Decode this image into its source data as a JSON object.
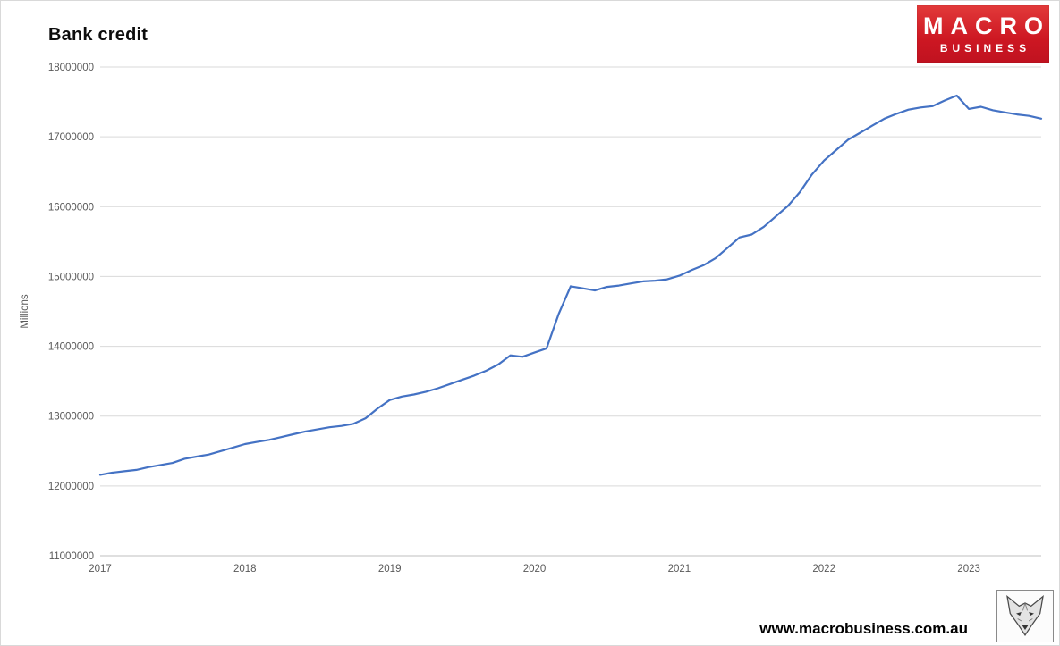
{
  "branding": {
    "logo_text_top": "MACRO",
    "logo_text_bottom": "BUSINESS",
    "logo_color": "#cd1722",
    "website": "www.macrobusiness.com.au"
  },
  "chart_data": {
    "type": "line",
    "title": "Bank credit",
    "xlabel": "",
    "ylabel": "Millions",
    "legend": "none",
    "grid": "horizontal",
    "series_name": "Bank credit",
    "series_color": "#4472c4",
    "ylim": [
      11000000,
      18000000
    ],
    "y_tick_step": 1000000,
    "x_tick_labels": [
      "2017",
      "2018",
      "2019",
      "2020",
      "2021",
      "2022",
      "2023"
    ],
    "months": [
      "2017-01",
      "2017-02",
      "2017-03",
      "2017-04",
      "2017-05",
      "2017-06",
      "2017-07",
      "2017-08",
      "2017-09",
      "2017-10",
      "2017-11",
      "2017-12",
      "2018-01",
      "2018-02",
      "2018-03",
      "2018-04",
      "2018-05",
      "2018-06",
      "2018-07",
      "2018-08",
      "2018-09",
      "2018-10",
      "2018-11",
      "2018-12",
      "2019-01",
      "2019-02",
      "2019-03",
      "2019-04",
      "2019-05",
      "2019-06",
      "2019-07",
      "2019-08",
      "2019-09",
      "2019-10",
      "2019-11",
      "2019-12",
      "2020-01",
      "2020-02",
      "2020-03",
      "2020-04",
      "2020-05",
      "2020-06",
      "2020-07",
      "2020-08",
      "2020-09",
      "2020-10",
      "2020-11",
      "2020-12",
      "2021-01",
      "2021-02",
      "2021-03",
      "2021-04",
      "2021-05",
      "2021-06",
      "2021-07",
      "2021-08",
      "2021-09",
      "2021-10",
      "2021-11",
      "2021-12",
      "2022-01",
      "2022-02",
      "2022-03",
      "2022-04",
      "2022-05",
      "2022-06",
      "2022-07",
      "2022-08",
      "2022-09",
      "2022-10",
      "2022-11",
      "2022-12",
      "2023-01",
      "2023-02",
      "2023-03",
      "2023-04",
      "2023-05",
      "2023-06",
      "2023-07"
    ],
    "values": [
      12160000,
      12190000,
      12210000,
      12230000,
      12270000,
      12300000,
      12330000,
      12390000,
      12420000,
      12450000,
      12500000,
      12550000,
      12600000,
      12630000,
      12660000,
      12700000,
      12740000,
      12780000,
      12810000,
      12840000,
      12860000,
      12890000,
      12970000,
      13110000,
      13230000,
      13280000,
      13310000,
      13350000,
      13400000,
      13460000,
      13520000,
      13580000,
      13650000,
      13740000,
      13870000,
      13850000,
      13910000,
      13970000,
      14460000,
      14860000,
      14830000,
      14800000,
      14850000,
      14870000,
      14900000,
      14930000,
      14940000,
      14960000,
      15010000,
      15090000,
      15160000,
      15260000,
      15410000,
      15560000,
      15600000,
      15710000,
      15860000,
      16010000,
      16210000,
      16460000,
      16660000,
      16810000,
      16960000,
      17060000,
      17160000,
      17260000,
      17330000,
      17390000,
      17420000,
      17440000,
      17520000,
      17590000,
      17400000,
      17430000,
      17380000,
      17350000,
      17320000,
      17300000,
      17260000
    ]
  }
}
